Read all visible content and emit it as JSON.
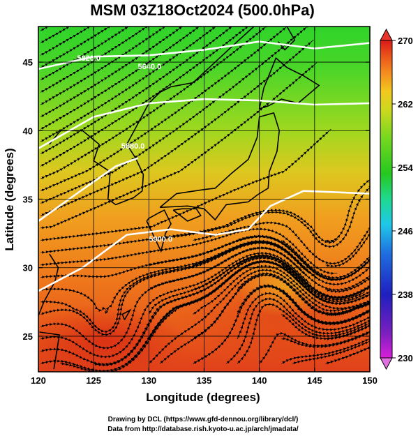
{
  "chart_data": {
    "type": "heatmap",
    "title": "MSM 03Z18Oct2024 (500.0hPa)",
    "xlabel": "Longitude (degrees)",
    "ylabel": "Latitude  (degrees)",
    "xlim": [
      120,
      150
    ],
    "ylim": [
      22.4,
      47.6
    ],
    "xticks": [
      "120",
      "125",
      "130",
      "135",
      "140",
      "145",
      "150"
    ],
    "yticks": [
      "25",
      "30",
      "35",
      "40",
      "45"
    ],
    "grid": true,
    "colorbar": {
      "range": [
        230,
        270
      ],
      "ticks": [
        "230",
        "238",
        "246",
        "254",
        "262",
        "270"
      ],
      "colors": [
        "#d81fd8",
        "#7a1fbf",
        "#1f1fbf",
        "#1f6fdf",
        "#1fc8e8",
        "#1fd890",
        "#25c820",
        "#7cd81f",
        "#ccd81f",
        "#f2c81f",
        "#f58a1f",
        "#e84a1a",
        "#d81a1a"
      ]
    },
    "contour_labels": [
      {
        "text": "5820.0"
      },
      {
        "text": "5640.0"
      },
      {
        "text": "5880.0"
      },
      {
        "text": "5900.0"
      }
    ],
    "credits": [
      "Drawing by DCL (https://www.gfd-dennou.org/library/dcl/)",
      "Data from http://database.rish.kyoto-u.ac.jp/arch/jmadata/"
    ]
  }
}
